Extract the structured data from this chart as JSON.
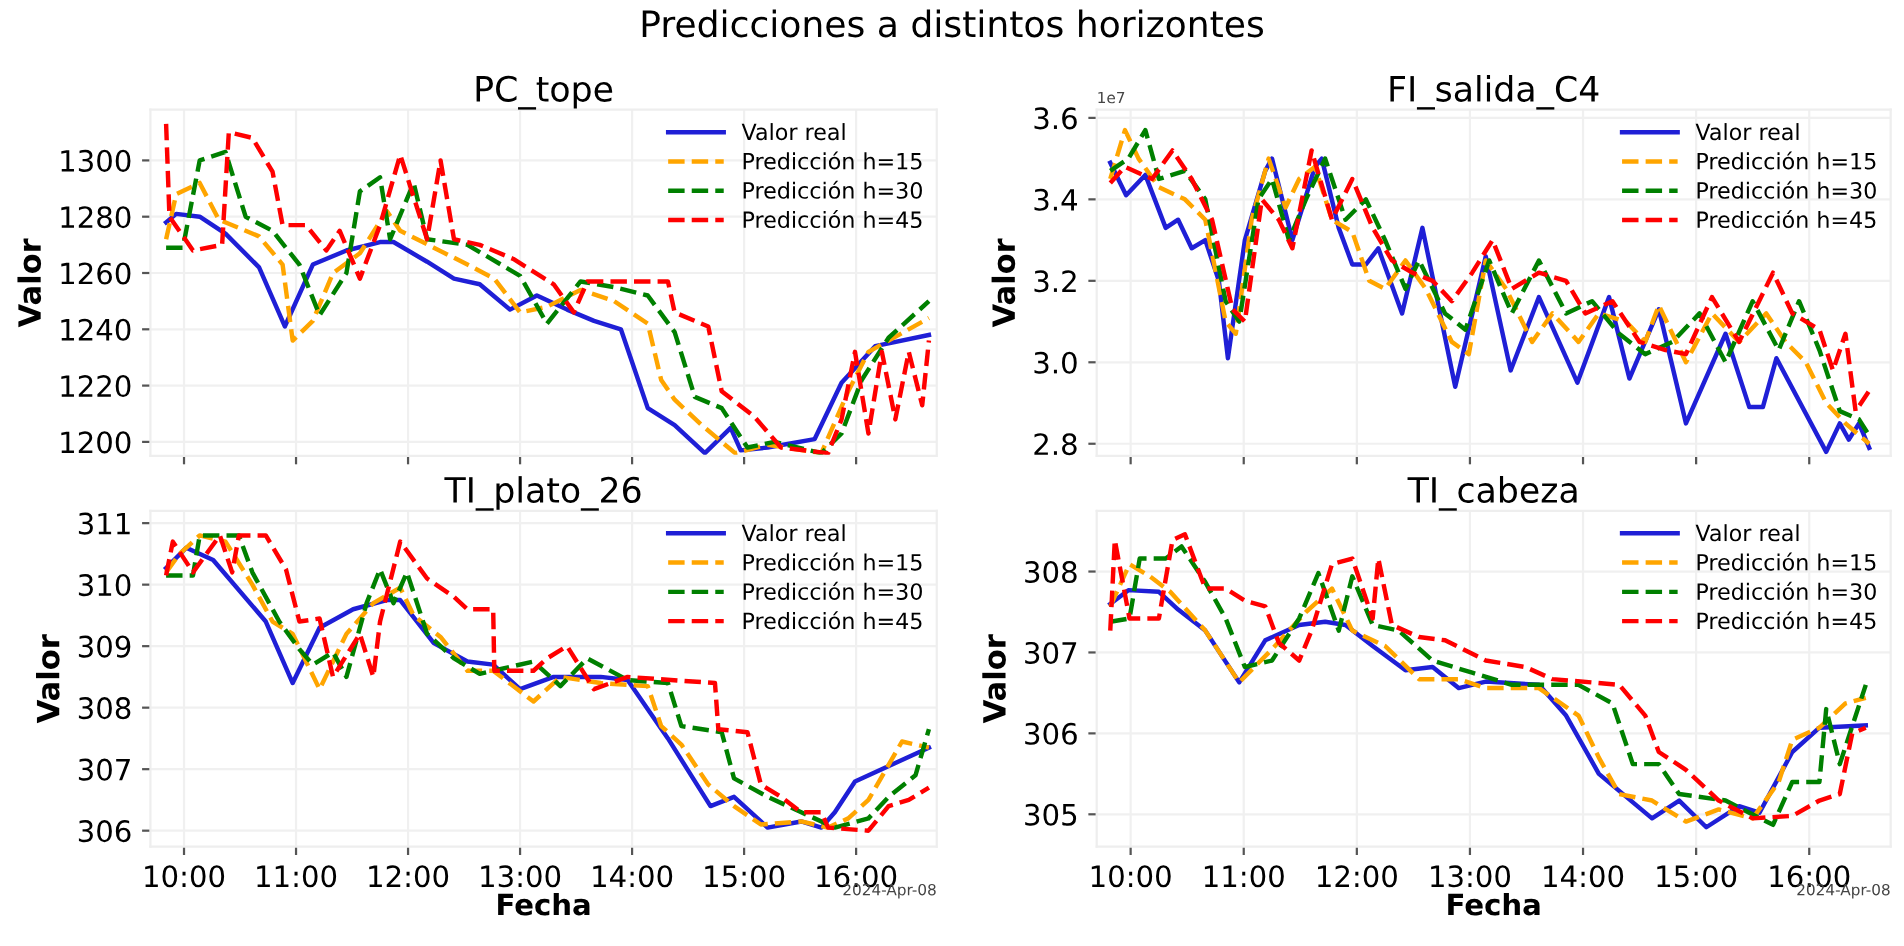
{
  "chart_data": [
    {
      "type": "line",
      "title": "Predicciones a distintos horizontes",
      "subtitle": "PC_tope",
      "ylabel": "Valor",
      "xlim": [
        9.7,
        16.72
      ],
      "xticks": [
        {
          "value": 10,
          "label": null
        },
        {
          "value": 11,
          "label": null
        },
        {
          "value": 12,
          "label": null
        },
        {
          "value": 13,
          "label": null
        },
        {
          "value": 14,
          "label": null
        },
        {
          "value": 15,
          "label": null
        },
        {
          "value": 16,
          "label": null
        }
      ],
      "ylim": [
        1195,
        1318
      ],
      "yticks": [
        1200,
        1220,
        1240,
        1260,
        1280,
        1300
      ],
      "tick_labels": "y",
      "grid": true,
      "legend": "top right",
      "series": [
        {
          "name": "Valor real",
          "color": "#1f1fd6",
          "line_style": "solid",
          "x": [
            9.84,
            9.93,
            10.14,
            10.37,
            10.67,
            10.9,
            11.15,
            11.45,
            11.75,
            11.87,
            12.17,
            12.41,
            12.64,
            12.91,
            13.15,
            13.42,
            13.66,
            13.9,
            14.14,
            14.38,
            14.65,
            14.88,
            14.97,
            15.21,
            15.63,
            15.87,
            16.17,
            16.65
          ],
          "values": [
            1278,
            1281,
            1280,
            1274,
            1262,
            1241,
            1263,
            1268,
            1271,
            1271,
            1264,
            1258,
            1256,
            1247,
            1252,
            1247,
            1243,
            1240,
            1212,
            1206,
            1196,
            1205,
            1197,
            1198,
            1201,
            1221,
            1234,
            1238
          ]
        },
        {
          "name": "Predicción h=15",
          "color": "#ffa500",
          "line_style": "dashed",
          "x": [
            9.84,
            9.93,
            10.14,
            10.31,
            10.67,
            10.88,
            10.97,
            11.15,
            11.33,
            11.57,
            11.81,
            11.93,
            12.23,
            12.53,
            12.77,
            13.0,
            13.24,
            13.54,
            13.84,
            14.14,
            14.26,
            14.38,
            14.62,
            14.92,
            15.21,
            15.69,
            15.93,
            16.11,
            16.65
          ],
          "values": [
            1272,
            1288,
            1292,
            1279,
            1273,
            1263,
            1236,
            1243,
            1260,
            1267,
            1282,
            1275,
            1269,
            1263,
            1258,
            1246,
            1248,
            1254,
            1250,
            1242,
            1222,
            1215,
            1206,
            1196,
            1199,
            1196,
            1218,
            1232,
            1244
          ]
        },
        {
          "name": "Predicción h=30",
          "color": "#008000",
          "line_style": "dashed",
          "x": [
            9.84,
            9.99,
            10.14,
            10.37,
            10.55,
            10.79,
            11.03,
            11.21,
            11.45,
            11.57,
            11.75,
            11.84,
            12.05,
            12.17,
            12.53,
            13.0,
            13.24,
            13.54,
            13.84,
            14.14,
            14.38,
            14.56,
            14.8,
            15.03,
            15.27,
            15.69,
            15.87,
            16.05,
            16.29,
            16.65
          ],
          "values": [
            1269,
            1269,
            1300,
            1303,
            1280,
            1275,
            1263,
            1245,
            1260,
            1289,
            1294,
            1272,
            1292,
            1272,
            1270,
            1259,
            1242,
            1257,
            1255,
            1252,
            1239,
            1216,
            1212,
            1198,
            1200,
            1196,
            1203,
            1222,
            1237,
            1250
          ]
        },
        {
          "name": "Predicción h=45",
          "color": "#ff0000",
          "line_style": "dashed",
          "x": [
            9.84,
            9.87,
            10.08,
            10.34,
            10.4,
            10.61,
            10.79,
            10.88,
            11.09,
            11.27,
            11.39,
            11.57,
            11.75,
            11.93,
            12.17,
            12.29,
            12.41,
            12.64,
            12.94,
            13.3,
            13.48,
            13.6,
            14.32,
            14.38,
            14.68,
            14.8,
            15.09,
            15.33,
            15.75,
            15.87,
            15.99,
            16.11,
            16.23,
            16.35,
            16.47,
            16.59,
            16.65
          ],
          "values": [
            1313,
            1280,
            1268,
            1270,
            1310,
            1308,
            1296,
            1277,
            1277,
            1268,
            1275,
            1258,
            1277,
            1302,
            1272,
            1300,
            1272,
            1270,
            1265,
            1256,
            1246,
            1257,
            1257,
            1246,
            1241,
            1218,
            1209,
            1198,
            1196,
            1208,
            1232,
            1203,
            1232,
            1208,
            1232,
            1213,
            1236
          ]
        }
      ]
    },
    {
      "type": "line",
      "subtitle": "FI_salida_C4",
      "ylabel": "Valor",
      "annotations": [
        "1e7"
      ],
      "xlim": [
        9.7,
        16.72
      ],
      "xticks": [
        {
          "value": 10,
          "label": null
        },
        {
          "value": 11,
          "label": null
        },
        {
          "value": 12,
          "label": null
        },
        {
          "value": 13,
          "label": null
        },
        {
          "value": 14,
          "label": null
        },
        {
          "value": 15,
          "label": null
        },
        {
          "value": 16,
          "label": null
        }
      ],
      "ylim": [
        2.77,
        3.62
      ],
      "yticks": [
        {
          "value": 2.8,
          "label": "2.8"
        },
        {
          "value": 3.0,
          "label": "3.0"
        },
        {
          "value": 3.2,
          "label": "3.2"
        },
        {
          "value": 3.4,
          "label": "3.4"
        },
        {
          "value": 3.6,
          "label": "3.6"
        }
      ],
      "tick_labels": "y",
      "grid": true,
      "legend": "top right",
      "series": [
        {
          "name": "Valor real",
          "color": "#1f1fd6",
          "line_style": "solid",
          "x": [
            9.82,
            9.96,
            10.13,
            10.31,
            10.42,
            10.54,
            10.66,
            10.78,
            10.86,
            11.01,
            11.19,
            11.25,
            11.43,
            11.63,
            11.69,
            11.84,
            11.96,
            12.08,
            12.19,
            12.4,
            12.58,
            12.87,
            13.14,
            13.36,
            13.61,
            13.95,
            14.23,
            14.41,
            14.67,
            14.91,
            15.26,
            15.47,
            15.59,
            15.71,
            16.15,
            16.27,
            16.35,
            16.44,
            16.53
          ],
          "values": [
            3.49,
            3.41,
            3.46,
            3.33,
            3.35,
            3.28,
            3.3,
            3.2,
            3.01,
            3.3,
            3.47,
            3.5,
            3.3,
            3.48,
            3.5,
            3.33,
            3.24,
            3.24,
            3.28,
            3.12,
            3.33,
            2.94,
            3.26,
            2.98,
            3.16,
            2.95,
            3.16,
            2.96,
            3.13,
            2.85,
            3.07,
            2.89,
            2.89,
            3.01,
            2.78,
            2.85,
            2.81,
            2.85,
            2.79
          ]
        },
        {
          "name": "Predicción h=15",
          "color": "#ffa500",
          "line_style": "dashed",
          "x": [
            9.82,
            9.95,
            10.07,
            10.25,
            10.48,
            10.66,
            10.84,
            10.93,
            11.07,
            11.22,
            11.37,
            11.49,
            11.63,
            11.78,
            11.96,
            12.11,
            12.25,
            12.43,
            12.61,
            12.84,
            12.99,
            13.14,
            13.32,
            13.55,
            13.73,
            13.96,
            14.14,
            14.38,
            14.55,
            14.67,
            14.91,
            15.14,
            15.38,
            15.62,
            15.79,
            15.97,
            16.15,
            16.32,
            16.53
          ],
          "values": [
            3.45,
            3.57,
            3.5,
            3.43,
            3.4,
            3.35,
            3.1,
            3.07,
            3.35,
            3.5,
            3.38,
            3.45,
            3.48,
            3.35,
            3.32,
            3.2,
            3.18,
            3.25,
            3.18,
            3.05,
            3.02,
            3.25,
            3.18,
            3.05,
            3.12,
            3.05,
            3.12,
            3.1,
            3.05,
            3.14,
            3.0,
            3.12,
            3.05,
            3.12,
            3.05,
            3.0,
            2.9,
            2.85,
            2.8
          ]
        },
        {
          "name": "Predicción h=30",
          "color": "#008000",
          "line_style": "dashed",
          "x": [
            9.82,
            9.98,
            10.13,
            10.25,
            10.48,
            10.66,
            10.84,
            10.96,
            11.13,
            11.25,
            11.4,
            11.55,
            11.72,
            11.9,
            12.08,
            12.25,
            12.43,
            12.55,
            12.78,
            12.96,
            13.17,
            13.37,
            13.61,
            13.85,
            14.08,
            14.32,
            14.55,
            14.79,
            15.03,
            15.26,
            15.5,
            15.73,
            15.91,
            16.09,
            16.27,
            16.44,
            16.53
          ],
          "values": [
            3.47,
            3.5,
            3.57,
            3.45,
            3.47,
            3.4,
            3.15,
            3.1,
            3.4,
            3.45,
            3.3,
            3.4,
            3.5,
            3.35,
            3.4,
            3.3,
            3.18,
            3.25,
            3.12,
            3.08,
            3.25,
            3.12,
            3.25,
            3.12,
            3.15,
            3.07,
            3.02,
            3.05,
            3.12,
            3.0,
            3.15,
            3.03,
            3.15,
            3.03,
            2.88,
            2.86,
            2.82
          ]
        },
        {
          "name": "Predicción h=45",
          "color": "#ff0000",
          "line_style": "dashed",
          "x": [
            9.82,
            9.95,
            10.19,
            10.37,
            10.54,
            10.72,
            10.9,
            11.01,
            11.16,
            11.31,
            11.43,
            11.6,
            11.78,
            11.96,
            12.14,
            12.31,
            12.49,
            12.67,
            12.84,
            13.02,
            13.2,
            13.37,
            13.61,
            13.85,
            14.02,
            14.26,
            14.5,
            14.73,
            14.91,
            15.14,
            15.38,
            15.68,
            15.85,
            16.09,
            16.21,
            16.32,
            16.41,
            16.53
          ],
          "values": [
            3.44,
            3.48,
            3.45,
            3.52,
            3.45,
            3.35,
            3.13,
            3.1,
            3.4,
            3.35,
            3.28,
            3.52,
            3.35,
            3.45,
            3.33,
            3.25,
            3.22,
            3.2,
            3.15,
            3.22,
            3.3,
            3.18,
            3.22,
            3.2,
            3.12,
            3.15,
            3.05,
            3.03,
            3.02,
            3.16,
            3.05,
            3.22,
            3.12,
            3.08,
            2.98,
            3.07,
            2.88,
            2.93
          ]
        }
      ]
    },
    {
      "type": "line",
      "subtitle": "TI_plato_26",
      "xlabel": "Fecha",
      "ylabel": "Valor",
      "annotations": [
        "2024-Apr-08"
      ],
      "xlim": [
        9.7,
        16.72
      ],
      "xticks": [
        {
          "value": 10,
          "label": "10:00"
        },
        {
          "value": 11,
          "label": "11:00"
        },
        {
          "value": 12,
          "label": "12:00"
        },
        {
          "value": 13,
          "label": "13:00"
        },
        {
          "value": 14,
          "label": "14:00"
        },
        {
          "value": 15,
          "label": "15:00"
        },
        {
          "value": 16,
          "label": "16:00"
        }
      ],
      "ylim": [
        305.74,
        311.2
      ],
      "yticks": [
        306,
        307,
        308,
        309,
        310,
        311
      ],
      "grid": true,
      "legend": "top right",
      "series": [
        {
          "name": "Valor real",
          "color": "#1f1fd6",
          "line_style": "solid",
          "x": [
            9.84,
            10.02,
            10.26,
            10.73,
            10.97,
            11.21,
            11.51,
            11.81,
            11.93,
            12.23,
            12.53,
            12.76,
            13.0,
            13.3,
            13.72,
            13.96,
            14.32,
            14.7,
            14.91,
            15.21,
            15.51,
            15.69,
            15.81,
            15.99,
            16.65
          ],
          "values": [
            310.27,
            310.6,
            310.4,
            309.4,
            308.4,
            309.3,
            309.6,
            309.75,
            309.75,
            309.05,
            308.75,
            308.7,
            308.3,
            308.5,
            308.5,
            308.45,
            307.5,
            306.4,
            306.55,
            306.05,
            306.15,
            306.05,
            306.3,
            306.8,
            307.35
          ]
        },
        {
          "name": "Predicción h=15",
          "color": "#ffa500",
          "line_style": "dashed",
          "x": [
            9.84,
            9.96,
            10.14,
            10.37,
            10.61,
            10.79,
            10.97,
            11.21,
            11.45,
            11.69,
            11.93,
            12.05,
            12.29,
            12.53,
            12.76,
            13.12,
            13.36,
            13.72,
            14.14,
            14.26,
            14.44,
            14.68,
            14.91,
            15.15,
            15.51,
            15.75,
            15.93,
            16.11,
            16.41,
            16.65
          ],
          "values": [
            310.2,
            310.5,
            310.8,
            310.7,
            310.0,
            309.4,
            309.2,
            308.3,
            309.2,
            309.7,
            309.95,
            309.5,
            309.15,
            308.6,
            308.6,
            308.1,
            308.5,
            308.4,
            308.35,
            307.7,
            307.4,
            306.75,
            306.4,
            306.1,
            306.15,
            306.05,
            306.2,
            306.5,
            307.45,
            307.35
          ]
        },
        {
          "name": "Predicción h=30",
          "color": "#008000",
          "line_style": "dashed",
          "x": [
            9.84,
            10.08,
            10.14,
            10.49,
            10.61,
            10.85,
            11.03,
            11.15,
            11.33,
            11.45,
            11.63,
            11.75,
            11.87,
            11.99,
            12.17,
            12.41,
            12.64,
            13.12,
            13.36,
            13.6,
            13.96,
            14.32,
            14.44,
            14.8,
            14.91,
            15.21,
            15.51,
            15.81,
            16.11,
            16.29,
            16.53,
            16.65
          ],
          "values": [
            310.15,
            310.15,
            310.8,
            310.8,
            310.2,
            309.4,
            308.95,
            308.7,
            308.9,
            308.5,
            309.7,
            310.25,
            309.7,
            310.2,
            309.2,
            308.8,
            308.55,
            308.75,
            308.35,
            308.8,
            308.45,
            308.4,
            307.7,
            307.6,
            306.85,
            306.55,
            306.3,
            306.05,
            306.2,
            306.55,
            306.9,
            307.65
          ]
        },
        {
          "name": "Predicción h=45",
          "color": "#ff0000",
          "line_style": "dashed",
          "x": [
            9.84,
            9.9,
            10.08,
            10.32,
            10.43,
            10.49,
            10.73,
            10.91,
            11.03,
            11.21,
            11.33,
            11.57,
            11.69,
            11.75,
            11.93,
            12.17,
            12.41,
            12.53,
            12.76,
            12.77,
            13.12,
            13.24,
            13.42,
            13.66,
            13.96,
            14.74,
            14.77,
            15.03,
            15.15,
            15.33,
            15.51,
            15.69,
            15.75,
            16.11,
            16.29,
            16.47,
            16.65
          ],
          "values": [
            310.15,
            310.7,
            310.2,
            310.8,
            310.2,
            310.8,
            310.8,
            310.25,
            309.4,
            309.45,
            308.5,
            309.2,
            308.5,
            309.4,
            310.7,
            310.1,
            309.8,
            309.6,
            309.6,
            308.6,
            308.6,
            308.8,
            309.0,
            308.3,
            308.5,
            308.4,
            307.65,
            307.6,
            306.75,
            306.55,
            306.3,
            306.3,
            306.05,
            306.0,
            306.4,
            306.5,
            306.7
          ]
        }
      ]
    },
    {
      "type": "line",
      "subtitle": "TI_cabeza",
      "xlabel": "Fecha",
      "ylabel": "Valor",
      "annotations": [
        "2024-Apr-08"
      ],
      "xlim": [
        9.7,
        16.72
      ],
      "xticks": [
        {
          "value": 10,
          "label": "10:00"
        },
        {
          "value": 11,
          "label": "11:00"
        },
        {
          "value": 12,
          "label": "12:00"
        },
        {
          "value": 13,
          "label": "13:00"
        },
        {
          "value": 14,
          "label": "14:00"
        },
        {
          "value": 15,
          "label": "15:00"
        },
        {
          "value": 16,
          "label": "16:00"
        }
      ],
      "ylim": [
        304.6,
        308.75
      ],
      "yticks": [
        305,
        306,
        307,
        308
      ],
      "grid": true,
      "legend": "top right",
      "series": [
        {
          "name": "Valor real",
          "color": "#1f1fd6",
          "line_style": "solid",
          "x": [
            9.82,
            9.98,
            10.25,
            10.42,
            10.66,
            10.96,
            11.19,
            11.49,
            11.72,
            11.9,
            12.14,
            12.43,
            12.67,
            12.9,
            13.14,
            13.61,
            13.85,
            14.14,
            14.61,
            14.85,
            15.09,
            15.38,
            15.56,
            15.85,
            16.09,
            16.5
          ],
          "values": [
            307.6,
            307.77,
            307.75,
            307.53,
            307.27,
            306.63,
            307.15,
            307.34,
            307.38,
            307.34,
            307.08,
            306.78,
            306.82,
            306.56,
            306.64,
            306.6,
            306.22,
            305.5,
            304.95,
            305.17,
            304.84,
            305.1,
            305.02,
            305.77,
            306.07,
            306.1
          ]
        },
        {
          "name": "Predicción h=15",
          "color": "#ffa500",
          "line_style": "dashed",
          "x": [
            9.82,
            9.99,
            10.17,
            10.35,
            10.66,
            10.96,
            11.25,
            11.55,
            11.78,
            11.96,
            12.25,
            12.55,
            12.9,
            13.14,
            13.61,
            13.96,
            14.14,
            14.32,
            14.61,
            14.91,
            15.2,
            15.5,
            15.73,
            15.85,
            16.09,
            16.32,
            16.5
          ],
          "values": [
            307.57,
            308.09,
            307.94,
            307.75,
            307.27,
            306.63,
            307.04,
            307.5,
            307.79,
            307.27,
            307.08,
            306.67,
            306.67,
            306.56,
            306.56,
            306.22,
            305.7,
            305.25,
            305.17,
            304.91,
            305.06,
            304.95,
            305.4,
            305.92,
            306.07,
            306.37,
            306.44
          ]
        },
        {
          "name": "Predicción h=30",
          "color": "#008000",
          "line_style": "dashed",
          "x": [
            9.82,
            9.99,
            10.08,
            10.31,
            10.45,
            10.66,
            10.84,
            11.01,
            11.25,
            11.49,
            11.66,
            11.84,
            11.96,
            12.14,
            12.37,
            12.67,
            13.02,
            13.37,
            13.96,
            14.26,
            14.44,
            14.67,
            14.85,
            15.26,
            15.68,
            15.85,
            16.09,
            16.15,
            16.27,
            16.5
          ],
          "values": [
            307.38,
            307.42,
            308.16,
            308.16,
            308.31,
            307.87,
            307.42,
            306.82,
            306.9,
            307.42,
            307.98,
            307.27,
            307.94,
            307.34,
            307.27,
            306.9,
            306.75,
            306.6,
            306.6,
            306.37,
            305.62,
            305.62,
            305.25,
            305.17,
            304.87,
            305.4,
            305.4,
            306.3,
            305.62,
            306.6
          ]
        },
        {
          "name": "Predicción h=45",
          "color": "#ff0000",
          "line_style": "dashed",
          "x": [
            9.82,
            9.86,
            9.99,
            10.25,
            10.37,
            10.48,
            10.66,
            10.84,
            11.01,
            11.19,
            11.31,
            11.49,
            11.6,
            11.78,
            11.96,
            12.14,
            12.19,
            12.31,
            12.55,
            12.78,
            13.14,
            13.49,
            13.73,
            14.08,
            14.32,
            14.55,
            14.67,
            14.91,
            15.2,
            15.5,
            15.85,
            16.09,
            16.27,
            16.38,
            16.5
          ],
          "values": [
            307.27,
            308.39,
            307.42,
            307.42,
            308.39,
            308.46,
            307.79,
            307.79,
            307.64,
            307.57,
            307.12,
            306.9,
            307.27,
            308.09,
            308.16,
            307.42,
            308.16,
            307.34,
            307.19,
            307.15,
            306.9,
            306.82,
            306.67,
            306.63,
            306.6,
            306.22,
            305.77,
            305.55,
            305.17,
            304.95,
            304.98,
            305.17,
            305.25,
            306.0,
            306.07
          ]
        }
      ]
    }
  ]
}
